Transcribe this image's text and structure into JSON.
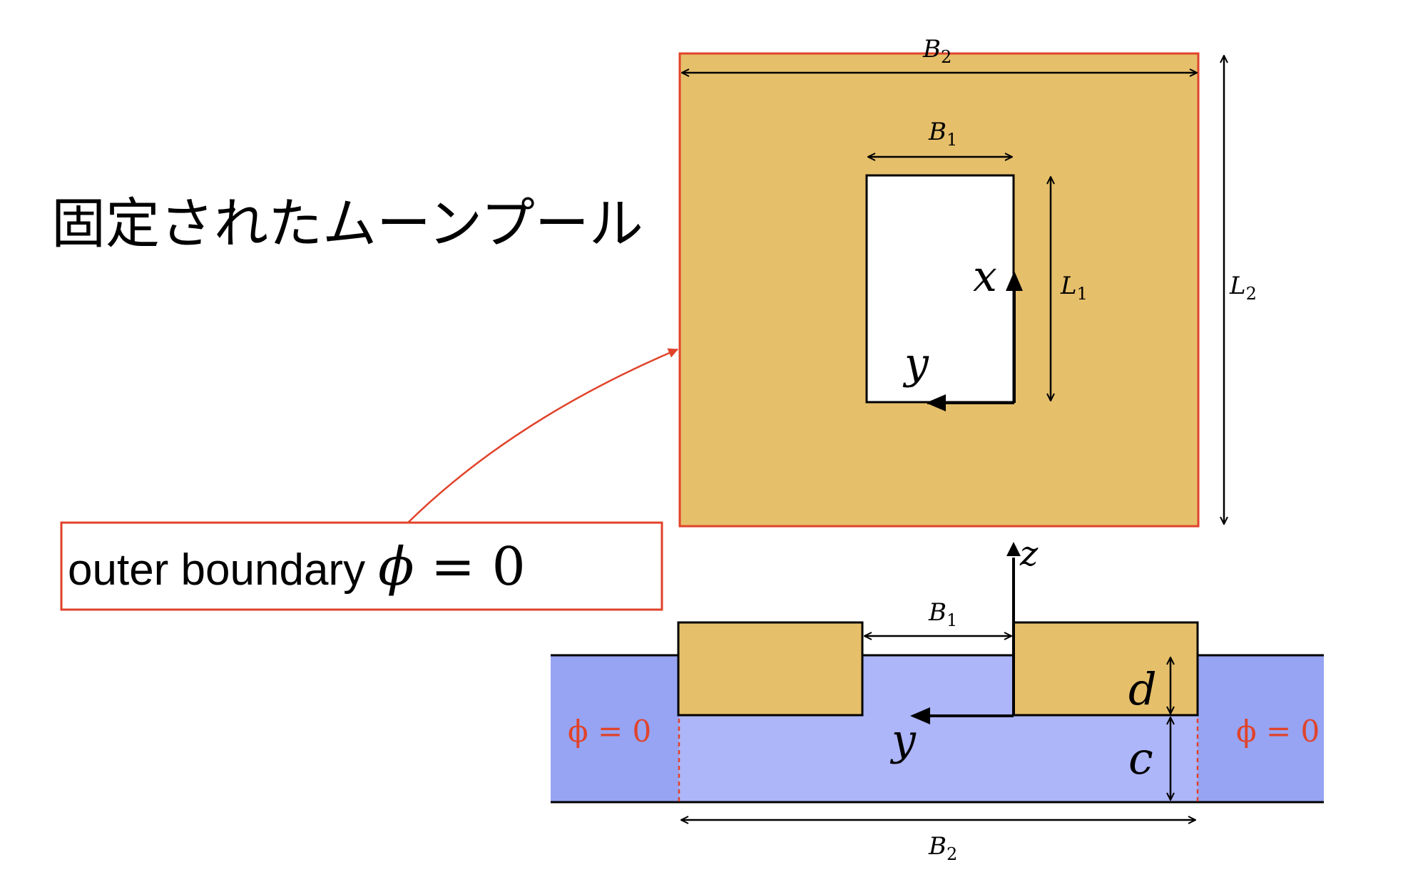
{
  "title": "固定されたムーンプール",
  "callout": {
    "text": "outer boundary",
    "formula_symbol": "ϕ",
    "formula_rest": " = 0",
    "border_color": "#E0432A"
  },
  "top_view": {
    "outer_width_label": "B",
    "outer_width_sub": "2",
    "outer_length_label": "L",
    "outer_length_sub": "2",
    "inner_width_label": "B",
    "inner_width_sub": "1",
    "inner_length_label": "L",
    "inner_length_sub": "1",
    "axis_x": "x",
    "axis_y": "y",
    "fill_color": "#E6BF6B"
  },
  "side_view": {
    "axis_z": "z",
    "axis_y": "y",
    "gap_label": "B",
    "gap_sub": "1",
    "draft_label": "d",
    "clearance_label": "c",
    "width_label": "B",
    "width_sub": "2",
    "left_bc": "ϕ = 0",
    "right_bc": "ϕ = 0",
    "water_color": "#ADB6F8",
    "outer_water_color": "#97A4F3",
    "bc_color": "#E0432A"
  }
}
